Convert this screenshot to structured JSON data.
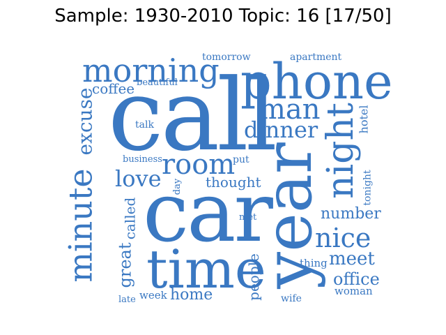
{
  "title": "Sample: 1930-2010 Topic: 16 [17/50]",
  "color": "#3a78c2",
  "words": [
    {
      "text": "call"
    },
    {
      "text": "car"
    },
    {
      "text": "year"
    },
    {
      "text": "phone"
    },
    {
      "text": "time"
    },
    {
      "text": "minute"
    },
    {
      "text": "night"
    },
    {
      "text": "morning"
    },
    {
      "text": "room"
    },
    {
      "text": "man"
    },
    {
      "text": "nice"
    },
    {
      "text": "dinner"
    },
    {
      "text": "excuse"
    },
    {
      "text": "love"
    },
    {
      "text": "meet"
    },
    {
      "text": "number"
    },
    {
      "text": "office"
    },
    {
      "text": "great"
    },
    {
      "text": "home"
    },
    {
      "text": "coffee"
    },
    {
      "text": "thought"
    },
    {
      "text": "called"
    },
    {
      "text": "people"
    },
    {
      "text": "hotel"
    },
    {
      "text": "tomorrow"
    },
    {
      "text": "apartment"
    },
    {
      "text": "beautiful"
    },
    {
      "text": "talk"
    },
    {
      "text": "business"
    },
    {
      "text": "put"
    },
    {
      "text": "day"
    },
    {
      "text": "tonight"
    },
    {
      "text": "met"
    },
    {
      "text": "thing"
    },
    {
      "text": "woman"
    },
    {
      "text": "week"
    },
    {
      "text": "late"
    },
    {
      "text": "wife"
    }
  ]
}
